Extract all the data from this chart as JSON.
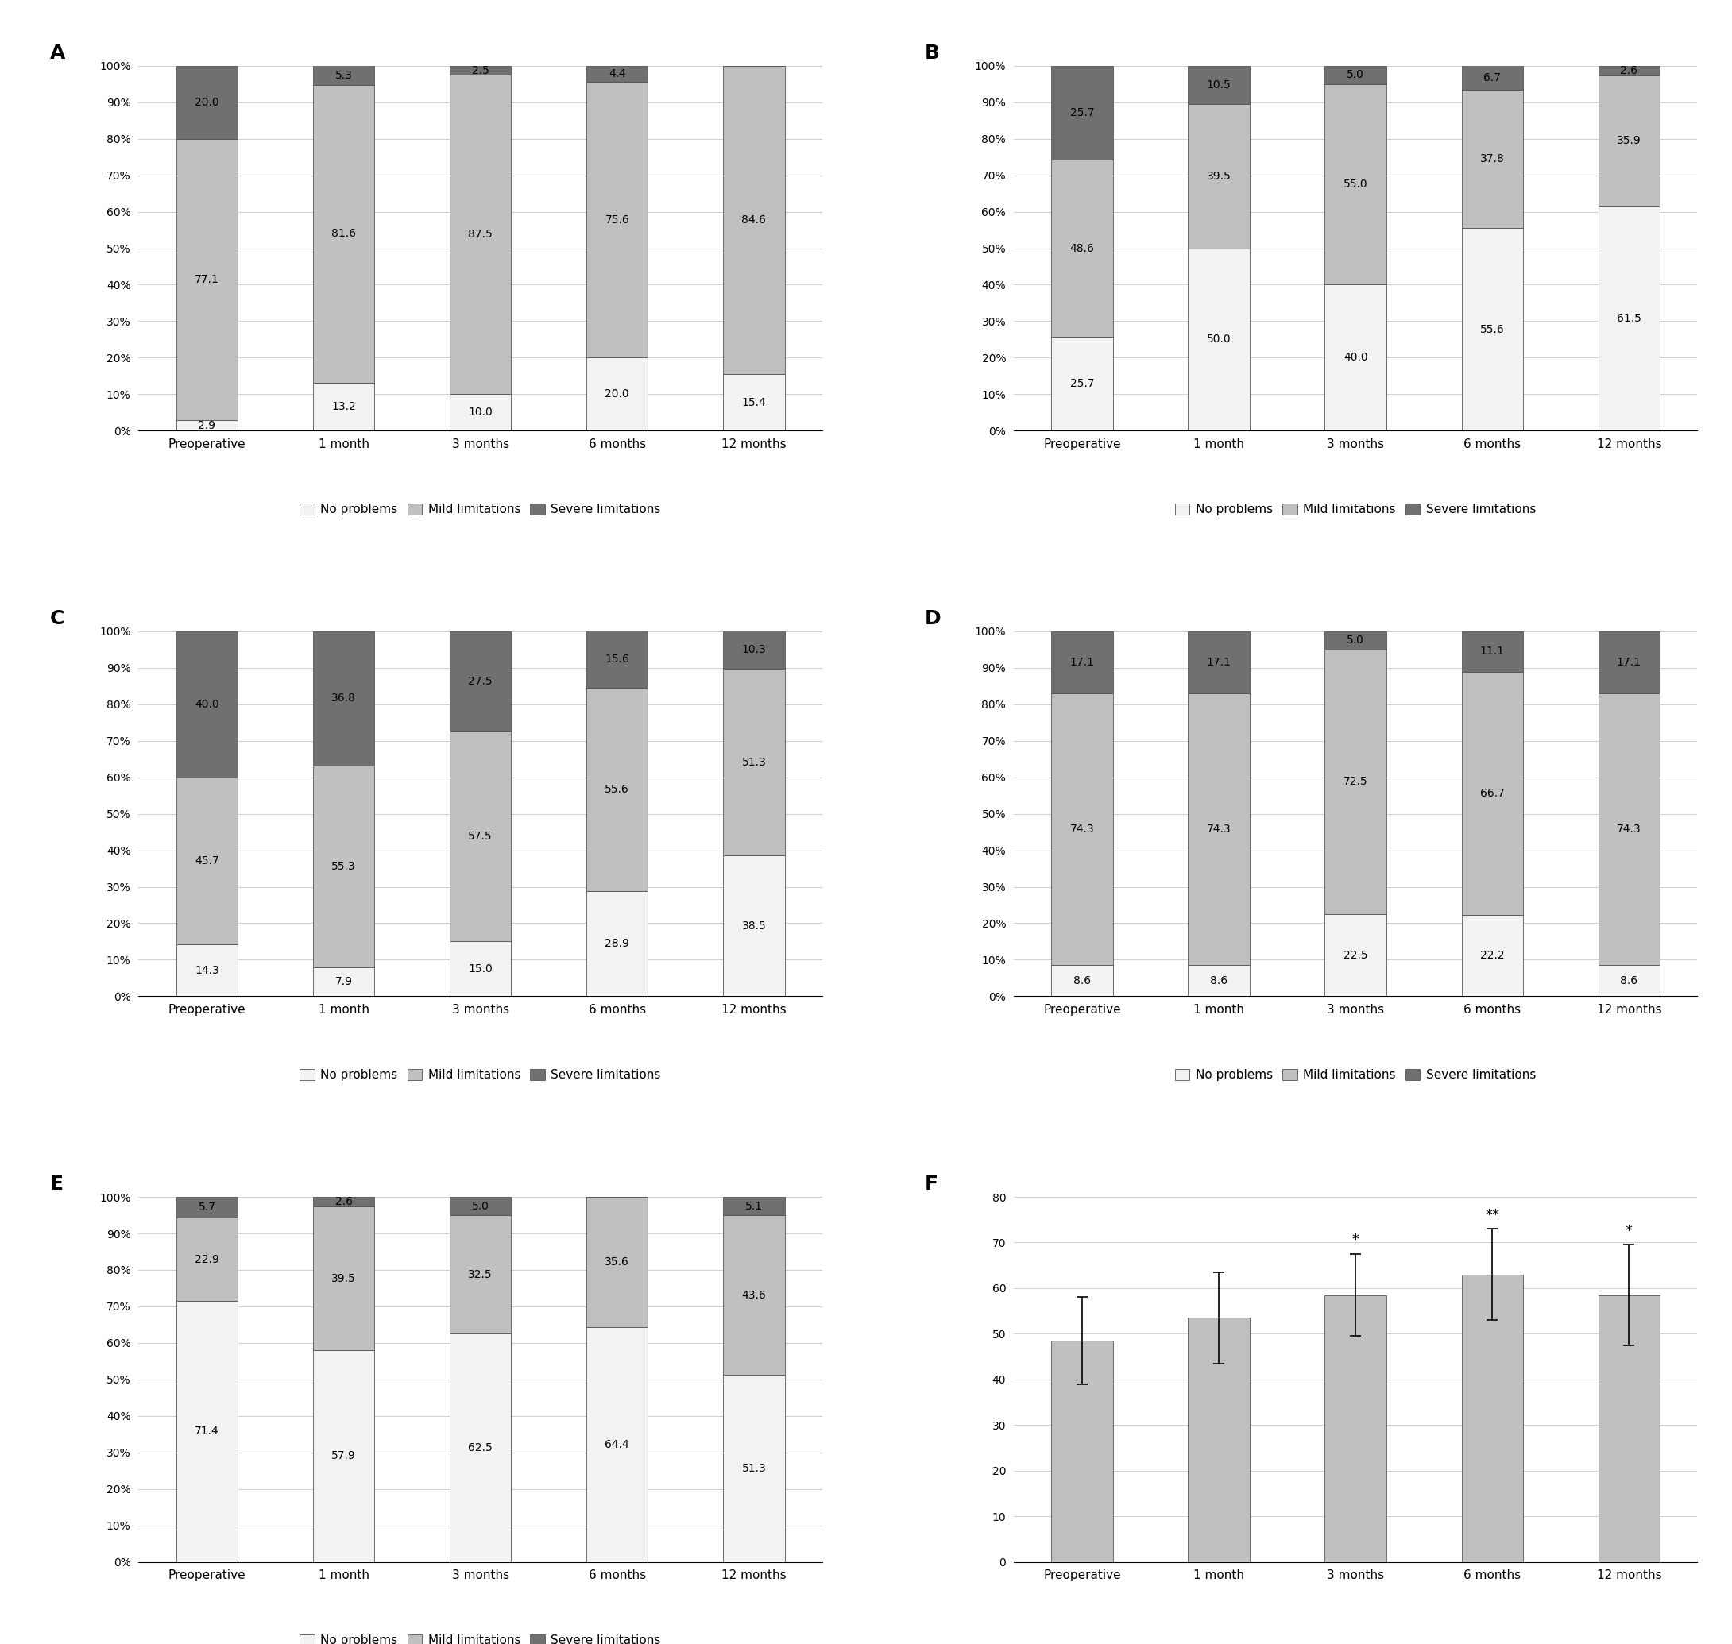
{
  "timepoints": [
    "Preoperative",
    "1 month",
    "3 months",
    "6 months",
    "12 months"
  ],
  "panels": {
    "A": {
      "no_problems": [
        2.9,
        13.2,
        10.0,
        20.0,
        15.4
      ],
      "mild_limitations": [
        77.1,
        81.6,
        87.5,
        75.6,
        84.6
      ],
      "severe_limitations": [
        20.0,
        5.3,
        2.5,
        4.4,
        0.0
      ]
    },
    "B": {
      "no_problems": [
        25.7,
        50.0,
        40.0,
        55.6,
        61.5
      ],
      "mild_limitations": [
        48.6,
        39.5,
        55.0,
        37.8,
        35.9
      ],
      "severe_limitations": [
        25.7,
        10.5,
        5.0,
        6.7,
        2.6
      ]
    },
    "C": {
      "no_problems": [
        14.3,
        7.9,
        15.0,
        28.9,
        38.5
      ],
      "mild_limitations": [
        45.7,
        55.3,
        57.5,
        55.6,
        51.3
      ],
      "severe_limitations": [
        40.0,
        36.8,
        27.5,
        15.6,
        10.3
      ]
    },
    "D": {
      "no_problems": [
        8.6,
        8.6,
        22.5,
        22.2,
        8.6
      ],
      "mild_limitations": [
        74.3,
        74.3,
        72.5,
        66.7,
        74.3
      ],
      "severe_limitations": [
        17.1,
        17.1,
        5.0,
        11.1,
        17.1
      ]
    },
    "E": {
      "no_problems": [
        71.4,
        57.9,
        62.5,
        64.4,
        51.3
      ],
      "mild_limitations": [
        22.9,
        39.5,
        32.5,
        35.6,
        43.6
      ],
      "severe_limitations": [
        5.7,
        2.6,
        5.0,
        0.0,
        5.1
      ]
    }
  },
  "F": {
    "means": [
      48.5,
      53.5,
      58.5,
      63.0,
      58.5
    ],
    "errors": [
      9.5,
      10.0,
      9.0,
      10.0,
      11.0
    ],
    "significance": [
      "",
      "",
      "*",
      "**",
      "*"
    ]
  },
  "colors": {
    "no_problems": "#f2f2f2",
    "mild_limitations": "#c0c0c0",
    "severe_limitations": "#707070"
  },
  "bar_color_F": "#c0c0c0"
}
